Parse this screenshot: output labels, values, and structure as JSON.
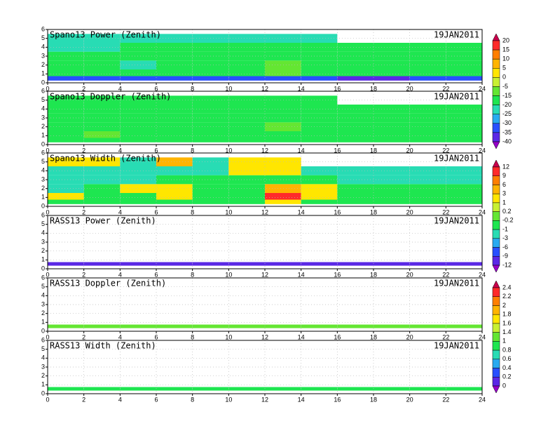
{
  "chart_data": [
    {
      "type": "heatmap",
      "title": "Spano13 Power (Zenith)",
      "date": "19JAN2011",
      "xlim": [
        0,
        24
      ],
      "xticks": [
        0,
        2,
        4,
        6,
        8,
        10,
        12,
        14,
        16,
        18,
        20,
        22,
        24
      ],
      "ylim": [
        0,
        6
      ],
      "yticks": [
        0,
        1,
        2,
        3,
        4,
        5,
        6
      ],
      "grid": true,
      "x_edges": [
        0,
        2,
        4,
        6,
        8,
        10,
        12,
        14,
        16,
        18,
        20,
        22,
        24
      ],
      "y_edges": [
        0.25,
        0.75,
        1.5,
        2.5,
        3.5,
        4.5,
        5.5
      ],
      "z": [
        [
          -32,
          -32,
          -32,
          -32,
          -32,
          -32,
          -32,
          -32,
          -38,
          -38,
          -32,
          -32
        ],
        [
          -17,
          -17,
          -17,
          -17,
          -17,
          -17,
          -12,
          -17,
          -17,
          -17,
          -17,
          -17
        ],
        [
          -17,
          -17,
          -22,
          -17,
          -17,
          -17,
          -12,
          -17,
          -17,
          -17,
          -17,
          -17
        ],
        [
          -17,
          -17,
          -17,
          -17,
          -17,
          -17,
          -17,
          -17,
          -17,
          -17,
          -17,
          -17
        ],
        [
          -22,
          -22,
          -17,
          -17,
          -17,
          -17,
          -17,
          -17,
          -17,
          -17,
          -17,
          -17
        ],
        [
          -22,
          -22,
          -22,
          -22,
          -22,
          -22,
          -22,
          -22,
          null,
          null,
          null,
          null
        ]
      ]
    },
    {
      "type": "heatmap",
      "title": "Spano13 Doppler (Zenith)",
      "date": "19JAN2011",
      "xlim": [
        0,
        24
      ],
      "xticks": [
        0,
        2,
        4,
        6,
        8,
        10,
        12,
        14,
        16,
        18,
        20,
        22,
        24
      ],
      "ylim": [
        0,
        6
      ],
      "yticks": [
        0,
        1,
        2,
        3,
        4,
        5,
        6
      ],
      "grid": true,
      "x_edges": [
        0,
        2,
        4,
        6,
        8,
        10,
        12,
        14,
        16,
        18,
        20,
        22,
        24
      ],
      "y_edges": [
        0.25,
        0.75,
        1.5,
        2.5,
        3.5,
        4.5,
        5.5
      ],
      "z": [
        [
          -17,
          -17,
          -17,
          -17,
          -17,
          -17,
          -17,
          -17,
          -17,
          -17,
          -17,
          -17
        ],
        [
          -17,
          -12,
          -17,
          -17,
          -17,
          -17,
          -17,
          -17,
          -17,
          -17,
          -17,
          -17
        ],
        [
          -17,
          -17,
          -17,
          -17,
          -17,
          -17,
          -12,
          -17,
          -17,
          -17,
          -17,
          -17
        ],
        [
          -17,
          -17,
          -17,
          -17,
          -17,
          -17,
          -17,
          -17,
          -17,
          -17,
          -17,
          -17
        ],
        [
          -17,
          -17,
          -17,
          -17,
          -17,
          -17,
          -17,
          -17,
          -17,
          -17,
          -17,
          -17
        ],
        [
          -17,
          -17,
          -17,
          -17,
          -17,
          -17,
          -17,
          -17,
          null,
          null,
          null,
          null
        ]
      ]
    },
    {
      "type": "heatmap",
      "title": "Spano13 Width (Zenith)",
      "date": "19JAN2011",
      "xlim": [
        0,
        24
      ],
      "xticks": [
        0,
        2,
        4,
        6,
        8,
        10,
        12,
        14,
        16,
        18,
        20,
        22,
        24
      ],
      "ylim": [
        0,
        6
      ],
      "yticks": [
        0,
        1,
        2,
        3,
        4,
        5,
        6
      ],
      "grid": true,
      "x_edges": [
        0,
        2,
        4,
        6,
        8,
        10,
        12,
        14,
        16,
        18,
        20,
        22,
        24
      ],
      "y_edges": [
        0.25,
        0.75,
        1.5,
        2.5,
        3.5,
        4.5,
        5.5
      ],
      "z": [
        [
          -0.5,
          -0.5,
          -0.5,
          -0.5,
          -0.5,
          -0.5,
          2,
          -0.5,
          -0.5,
          -0.5,
          -0.5,
          -0.5
        ],
        [
          2,
          -0.5,
          -0.5,
          2,
          -0.5,
          -0.5,
          10,
          2,
          -0.5,
          -0.5,
          -0.5,
          -0.5
        ],
        [
          -2,
          -0.5,
          2,
          2,
          -0.5,
          -0.5,
          4,
          2,
          -0.5,
          -0.5,
          -0.5,
          -0.5
        ],
        [
          -2,
          -2,
          -2,
          -0.5,
          -0.5,
          -0.5,
          -0.5,
          -0.5,
          -2,
          -2,
          -2,
          -2
        ],
        [
          -2,
          -2,
          -2,
          -2,
          -2,
          2,
          2,
          -2,
          -2,
          -2,
          -2,
          -2
        ],
        [
          2,
          2,
          -2,
          4,
          -2,
          2,
          2,
          null,
          null,
          null,
          null,
          null
        ]
      ]
    },
    {
      "type": "heatmap",
      "title": "RASS13 Power (Zenith)",
      "date": "19JAN2011",
      "xlim": [
        0,
        24
      ],
      "xticks": [
        0,
        2,
        4,
        6,
        8,
        10,
        12,
        14,
        16,
        18,
        20,
        22,
        24
      ],
      "ylim": [
        0,
        6
      ],
      "yticks": [
        0,
        1,
        2,
        3,
        4,
        5,
        6
      ],
      "grid": true,
      "x_edges": [
        0,
        2,
        4,
        6,
        8,
        10,
        12,
        14,
        16,
        18,
        20,
        22,
        24
      ],
      "y_edges": [
        0.35,
        0.75
      ],
      "z": [
        [
          -10,
          -10,
          -10,
          -10,
          -10,
          -10,
          -10,
          -10,
          -10,
          -10,
          -10,
          -10
        ]
      ]
    },
    {
      "type": "heatmap",
      "title": "RASS13 Doppler (Zenith)",
      "date": "19JAN2011",
      "xlim": [
        0,
        24
      ],
      "xticks": [
        0,
        2,
        4,
        6,
        8,
        10,
        12,
        14,
        16,
        18,
        20,
        22,
        24
      ],
      "ylim": [
        0,
        6
      ],
      "yticks": [
        0,
        1,
        2,
        3,
        4,
        5,
        6
      ],
      "grid": true,
      "x_edges": [
        0,
        2,
        4,
        6,
        8,
        10,
        12,
        14,
        16,
        18,
        20,
        22,
        24
      ],
      "y_edges": [
        0.35,
        0.75
      ],
      "z": [
        [
          1.2,
          1.2,
          1.2,
          1.2,
          1.2,
          1.2,
          1.2,
          1.2,
          1.2,
          1.2,
          1.2,
          1.2
        ]
      ]
    },
    {
      "type": "heatmap",
      "title": "RASS13 Width (Zenith)",
      "date": "19JAN2011",
      "xlim": [
        0,
        24
      ],
      "xticks": [
        0,
        2,
        4,
        6,
        8,
        10,
        12,
        14,
        16,
        18,
        20,
        22,
        24
      ],
      "ylim": [
        0,
        6
      ],
      "yticks": [
        0,
        1,
        2,
        3,
        4,
        5,
        6
      ],
      "grid": true,
      "x_edges": [
        0,
        2,
        4,
        6,
        8,
        10,
        12,
        14,
        16,
        18,
        20,
        22,
        24
      ],
      "y_edges": [
        0.35,
        0.75
      ],
      "z": [
        [
          0.9,
          0.9,
          0.9,
          0.9,
          0.9,
          0.9,
          0.9,
          0.9,
          0.9,
          0.9,
          0.9,
          0.9
        ]
      ]
    }
  ],
  "colorbars": [
    {
      "levels": [
        20,
        15,
        10,
        5,
        0,
        -5,
        -15,
        -20,
        -25,
        -30,
        -35,
        -40
      ],
      "colors": [
        "#c8004b",
        "#ff2a2a",
        "#ff7f00",
        "#ffb400",
        "#ffe600",
        "#c8f032",
        "#64e632",
        "#1ee650",
        "#28dcb4",
        "#28aaf0",
        "#2850ff",
        "#5a28e6",
        "#9600c8"
      ]
    },
    {
      "levels": [
        12,
        9,
        6,
        3,
        1,
        0.2,
        -0.2,
        -1,
        -3,
        -6,
        -9,
        -12
      ],
      "colors": [
        "#c8004b",
        "#ff2a2a",
        "#ff7f00",
        "#ffb400",
        "#ffe600",
        "#c8f032",
        "#64e632",
        "#1ee650",
        "#28dcb4",
        "#28aaf0",
        "#2850ff",
        "#5a28e6",
        "#9600c8"
      ]
    },
    {
      "levels": [
        2.4,
        2.2,
        2,
        1.8,
        1.6,
        1.4,
        1,
        0.8,
        0.6,
        0.4,
        0.2,
        0
      ],
      "colors": [
        "#c8004b",
        "#ff2a2a",
        "#ff7f00",
        "#ffb400",
        "#ffe600",
        "#c8f032",
        "#64e632",
        "#1ee650",
        "#28dcb4",
        "#28aaf0",
        "#2850ff",
        "#5a28e6",
        "#9600c8"
      ]
    }
  ]
}
